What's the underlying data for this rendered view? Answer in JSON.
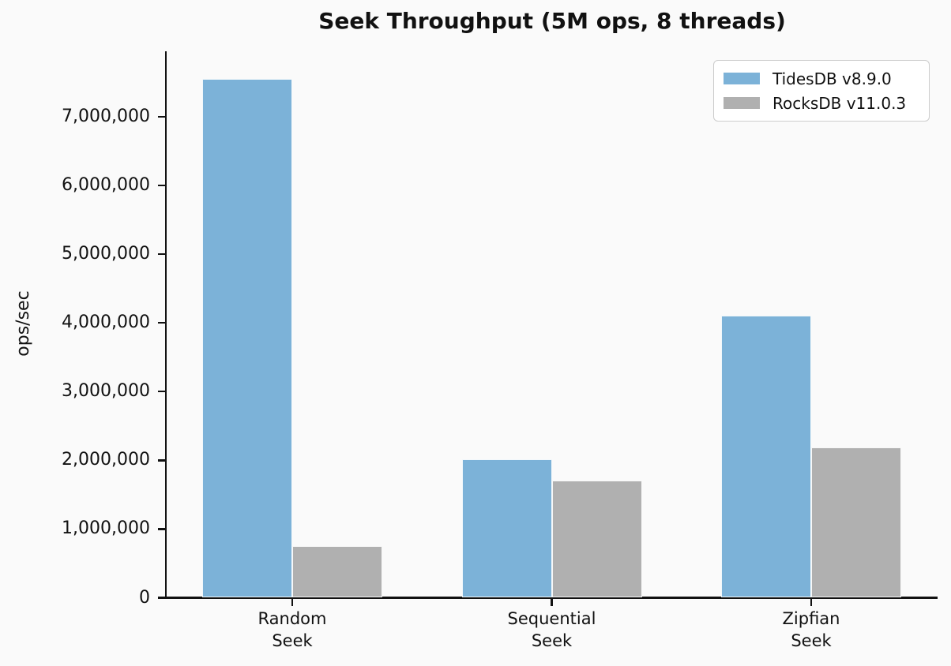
{
  "chart_data": {
    "type": "bar",
    "title": "Seek Throughput (5M ops, 8 threads)",
    "xlabel": "",
    "ylabel": "ops/sec",
    "categories": [
      "Random\nSeek",
      "Sequential\nSeek",
      "Zipfian\nSeek"
    ],
    "series": [
      {
        "name": "TidesDB v8.9.0",
        "color": "#7cb2d8",
        "values": [
          7550000,
          2010000,
          4100000
        ]
      },
      {
        "name": "RocksDB v11.0.3",
        "color": "#b0b0b0",
        "values": [
          750000,
          1710000,
          2190000
        ]
      }
    ],
    "ylim": [
      0,
      7950000
    ],
    "yticks": [
      0,
      1000000,
      2000000,
      3000000,
      4000000,
      5000000,
      6000000,
      7000000
    ],
    "grid": false,
    "legend_position": "upper right",
    "background_color": "#fafafa",
    "axis_color": "#111111"
  }
}
